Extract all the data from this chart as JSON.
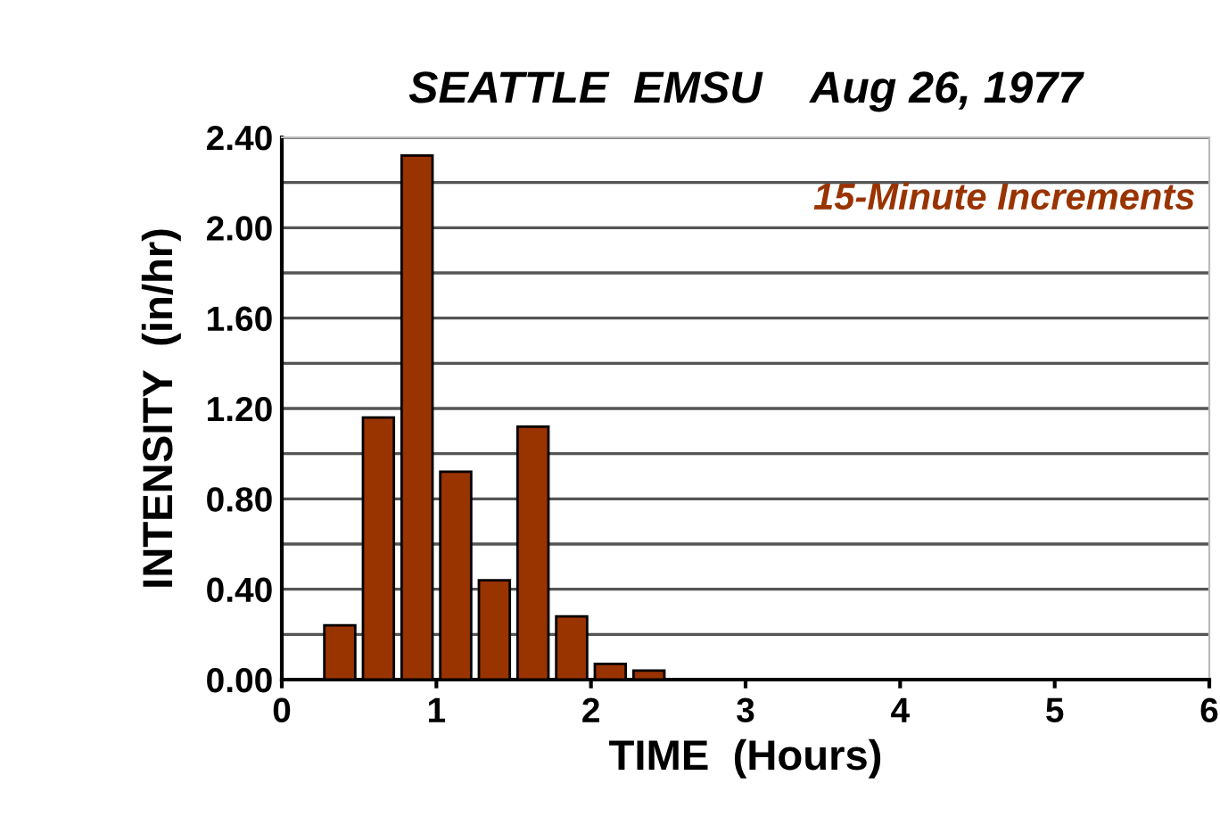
{
  "chart_data": {
    "type": "histogram",
    "title": "SEATTLE  EMSU    Aug 26, 1977",
    "xlabel": "TIME  (Hours)",
    "ylabel": "INTENSITY  (in/hr)",
    "annotations": [
      "15-Minute Increments"
    ],
    "bins": [
      0.25,
      0.5,
      0.75,
      1.0,
      1.25,
      1.5,
      1.75,
      2.0,
      2.25,
      2.5
    ],
    "values": [
      0.24,
      1.16,
      2.32,
      0.92,
      0.44,
      1.12,
      0.28,
      0.07,
      0.04
    ],
    "color": "#993300",
    "xlim": [
      0,
      6
    ],
    "xticks": [
      0,
      1,
      2,
      3,
      4,
      5,
      6
    ],
    "ylim": [
      0,
      2.4
    ],
    "yticks": [
      {
        "value": 0,
        "label": "0.00"
      },
      {
        "value": 0.2,
        "label": null
      },
      {
        "value": 0.4,
        "label": "0.40"
      },
      {
        "value": 0.6,
        "label": null
      },
      {
        "value": 0.8,
        "label": "0.80"
      },
      {
        "value": 1.0,
        "label": null
      },
      {
        "value": 1.2,
        "label": "1.20"
      },
      {
        "value": 1.4,
        "label": null
      },
      {
        "value": 1.6,
        "label": "1.60"
      },
      {
        "value": 1.8,
        "label": null
      },
      {
        "value": 2.0,
        "label": "2.00"
      },
      {
        "value": 2.2,
        "label": null
      },
      {
        "value": 2.4,
        "label": "2.40"
      }
    ],
    "grid": "y"
  }
}
